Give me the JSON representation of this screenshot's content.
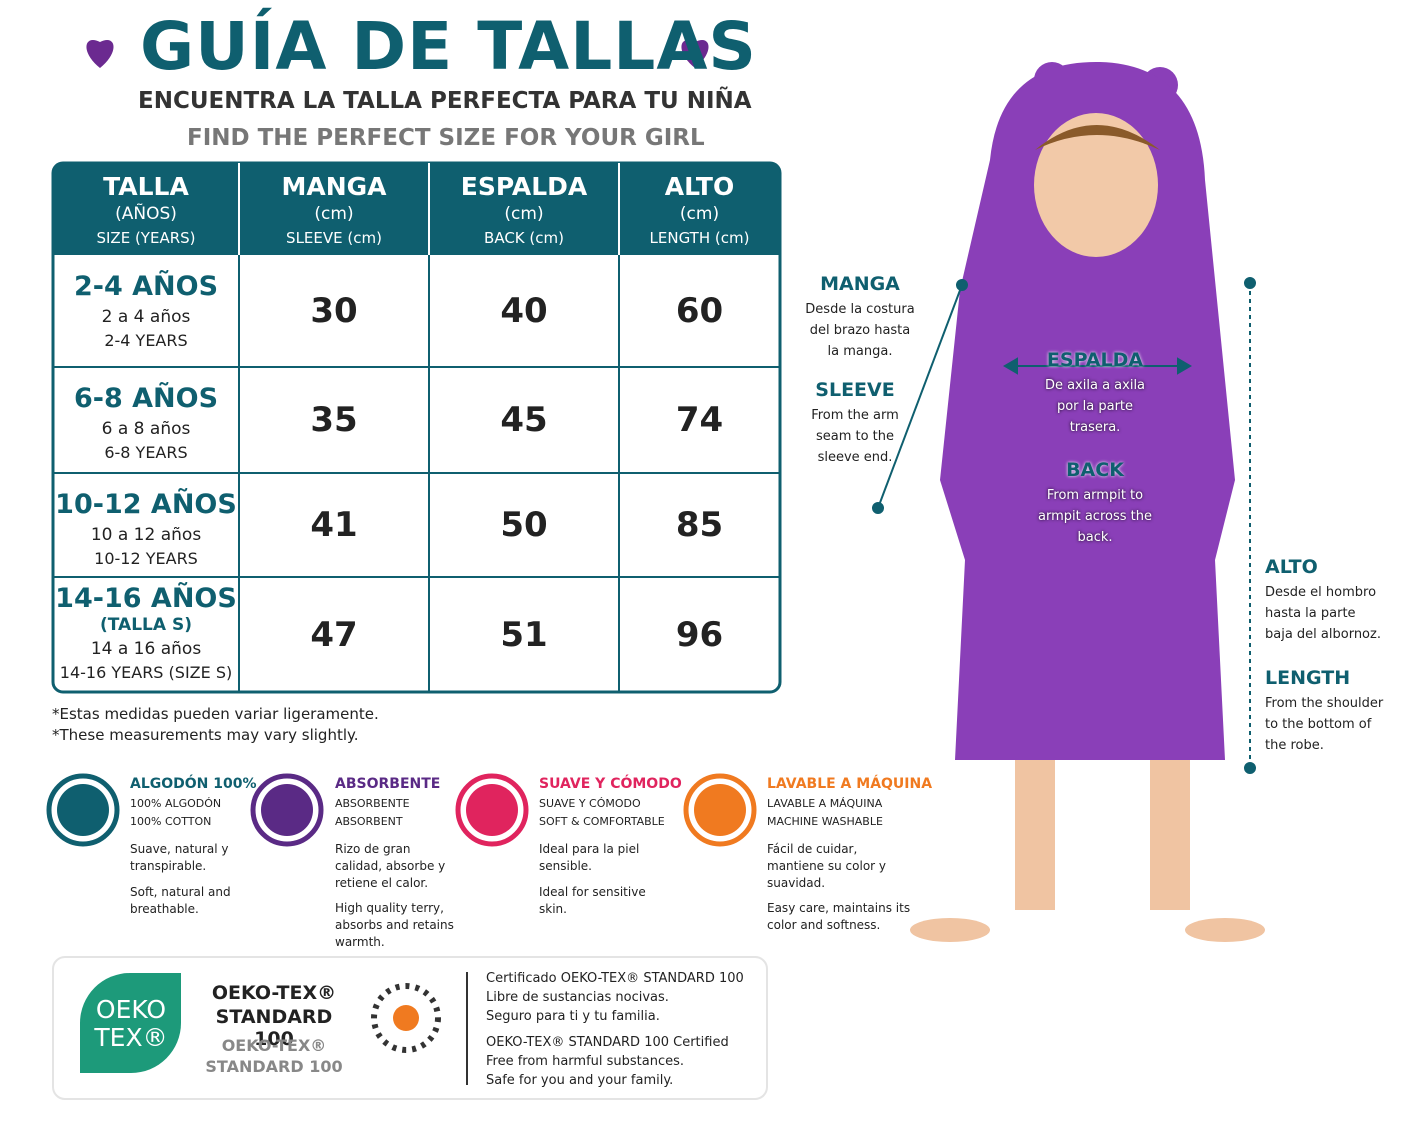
{
  "header": {
    "title": "GUÍA DE TALLAS",
    "subtitle_es": "ENCUENTRA LA TALLA PERFECTA PARA TU NIÑA",
    "subtitle_en": "FIND THE PERFECT SIZE FOR YOUR GIRL"
  },
  "table": {
    "columns": [
      {
        "title": "TALLA",
        "es": "(AÑOS)",
        "en": "SIZE (YEARS)"
      },
      {
        "title": "MANGA",
        "es": "(cm)",
        "en": "SLEEVE (cm)"
      },
      {
        "title": "ESPALDA",
        "es": "(cm)",
        "en": "BACK (cm)"
      },
      {
        "title": "ALTO",
        "es": "(cm)",
        "en": "LENGTH (cm)"
      }
    ],
    "rows": [
      {
        "label": "2-4 AÑOS",
        "es": "2 a 4 años",
        "en": "2-4 YEARS",
        "values": [
          30,
          40,
          60
        ]
      },
      {
        "label": "6-8 AÑOS",
        "es": "6 a 8 años",
        "en": "6-8 YEARS",
        "values": [
          35,
          45,
          74
        ]
      },
      {
        "label": "10-12 AÑOS",
        "es": "10 a 12 años",
        "en": "10-12 YEARS",
        "values": [
          41,
          50,
          85
        ]
      },
      {
        "label": "14-16 AÑOS",
        "extra": "(TALLA S)",
        "es": "14 a 16 años",
        "en": "14-16 YEARS (SIZE S)",
        "values": [
          47,
          51,
          96
        ]
      }
    ]
  },
  "notes": [
    "*Estas medidas pueden variar ligeramente.",
    "*These measurements may vary slightly."
  ],
  "features": [
    {
      "title": "ALGODÓN 100%",
      "sub": [
        "100% ALGODÓN",
        "100% COTTON"
      ],
      "desc_es": "Suave, natural y transpirable.",
      "desc_en": "Soft, natural and breathable."
    },
    {
      "title": "ABSORBENTE",
      "sub": [
        "ABSORBENTE",
        "ABSORBENT"
      ],
      "desc_es": "Rizo de gran calidad, absorbe y retiene el calor.",
      "desc_en": "High quality terry, absorbs and retains warmth."
    },
    {
      "title": "SUAVE Y CÓMODO",
      "sub": [
        "SUAVE Y CÓMODO",
        "SOFT & COMFORTABLE"
      ],
      "desc_es": "Ideal para la piel sensible.",
      "desc_en": "Ideal for sensitive skin."
    },
    {
      "title": "LAVABLE A MÁQUINA",
      "sub": [
        "LAVABLE A MÁQUINA",
        "MACHINE WASHABLE"
      ],
      "desc_es": "Fácil de cuidar, mantiene su color y suavidad.",
      "desc_en": "Easy care, maintains its color and softness."
    }
  ],
  "certification": {
    "badge": [
      "OEKO",
      "TEX®"
    ],
    "name": [
      "OEKO-TEX®",
      "STANDARD 100"
    ],
    "name_en": [
      "OEKO-TEX®",
      "STANDARD 100"
    ],
    "text_es": [
      "Certificado OEKO-TEX® STANDARD 100",
      "Libre de sustancias nocivas.",
      "Seguro para ti y tu familia."
    ],
    "text_en": [
      "OEKO-TEX® STANDARD 100 Certified",
      "Free from harmful substances.",
      "Safe for you and your family."
    ]
  },
  "diagram": {
    "manga": {
      "title": "MANGA",
      "text": "Desde la costura del brazo hasta la manga."
    },
    "sleeve": {
      "title": "SLEEVE",
      "text": "From the arm seam to the sleeve end."
    },
    "espalda": {
      "title": "ESPALDA",
      "text": "De axila a axila por la parte trasera."
    },
    "back": {
      "title": "BACK",
      "text": "From armpit to armpit across the back."
    },
    "alto": {
      "title": "ALTO",
      "text": "Desde el hombro hasta la parte baja del albornoz."
    },
    "length": {
      "title": "LENGTH",
      "text": "From the shoulder to the bottom of the robe."
    }
  }
}
